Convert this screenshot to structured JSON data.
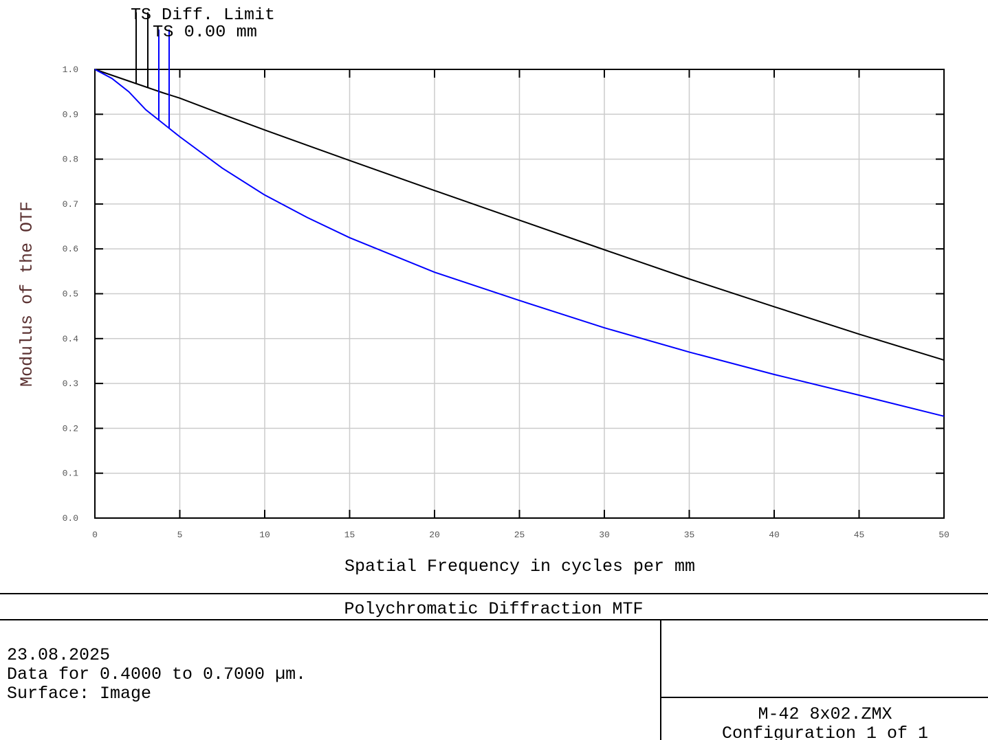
{
  "chart_data": {
    "type": "line",
    "title": "Polychromatic Diffraction MTF",
    "xlabel": "Spatial Frequency in cycles per mm",
    "ylabel": "Modulus of the OTF",
    "x": [
      0,
      1,
      2,
      3,
      4,
      5,
      7.5,
      10,
      12.5,
      15,
      20,
      25,
      30,
      35,
      40,
      45,
      50
    ],
    "series": [
      {
        "name": "TS Diff. Limit",
        "color": "#000000",
        "values": [
          1.0,
          0.987,
          0.974,
          0.961,
          0.948,
          0.936,
          0.9,
          0.865,
          0.831,
          0.797,
          0.73,
          0.664,
          0.598,
          0.533,
          0.471,
          0.41,
          0.352
        ]
      },
      {
        "name": "TS 0.00 mm",
        "color": "#0000ff",
        "values": [
          1.0,
          0.98,
          0.95,
          0.91,
          0.88,
          0.85,
          0.78,
          0.72,
          0.67,
          0.625,
          0.548,
          0.485,
          0.424,
          0.37,
          0.32,
          0.274,
          0.227
        ]
      }
    ],
    "xlim": [
      0,
      50
    ],
    "xticks": [
      0,
      5,
      10,
      15,
      20,
      25,
      30,
      35,
      40,
      45,
      50
    ],
    "ylim": [
      0,
      1
    ],
    "yticks": [
      {
        "value": 0,
        "label": "0.0"
      },
      0.1,
      0.2,
      0.3,
      0.4,
      0.5,
      0.6,
      0.7,
      0.8,
      0.9,
      {
        "value": 1,
        "label": "1.0"
      }
    ],
    "grid": true
  },
  "footer": {
    "info": [
      "23.08.2025",
      "Data for 0.4000 to 0.7000 µm.",
      "Surface: Image"
    ],
    "file": [
      "M-42 8x02.ZMX",
      "Configuration 1 of 1"
    ]
  }
}
